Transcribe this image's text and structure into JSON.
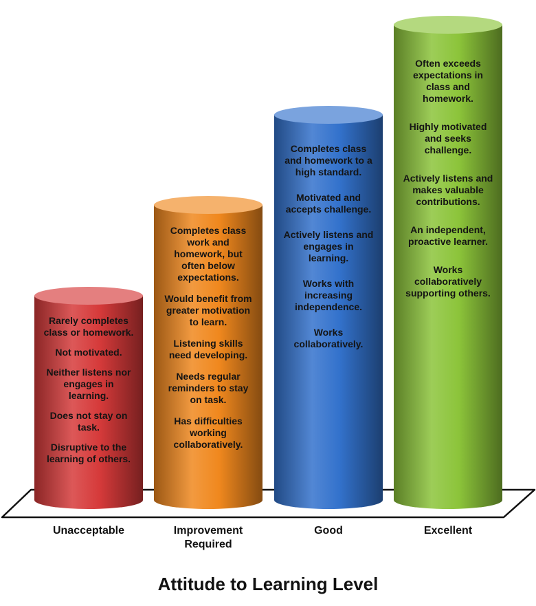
{
  "chart_data": {
    "type": "bar",
    "title": "",
    "xlabel": "Attitude to Learning Level",
    "ylabel": "",
    "categories": [
      "Unacceptable",
      "Improvement Required",
      "Good",
      "Excellent"
    ],
    "category_lines": [
      [
        "Unacceptable"
      ],
      [
        "Improvement",
        "Required"
      ],
      [
        "Good"
      ],
      [
        "Excellent"
      ]
    ],
    "values": [
      1,
      2,
      3,
      4
    ],
    "colors": [
      "#d63a3a",
      "#f0881e",
      "#3372cc",
      "#8cc43a"
    ],
    "descriptors": [
      [
        "Rarely completes class or homework.",
        "Not motivated.",
        "Neither listens nor engages in learning.",
        "Does not stay on task.",
        "Disruptive to the learning of others."
      ],
      [
        "Completes class work and homework, but often below expectations.",
        "Would benefit from greater motivation to learn.",
        "Listening skills need developing.",
        "Needs regular reminders to stay on task.",
        "Has difficulties working collaboratively."
      ],
      [
        "Completes class and homework to a high standard.",
        "Motivated and accepts challenge.",
        "Actively listens and engages in learning.",
        "Works with increasing independence.",
        "Works collaboratively."
      ],
      [
        "Often exceeds expectations in class and homework.",
        "Highly motivated and seeks challenge.",
        "Actively listens and makes valuable contributions.",
        "An independent, proactive learner.",
        "Works collaboratively supporting others."
      ]
    ]
  }
}
